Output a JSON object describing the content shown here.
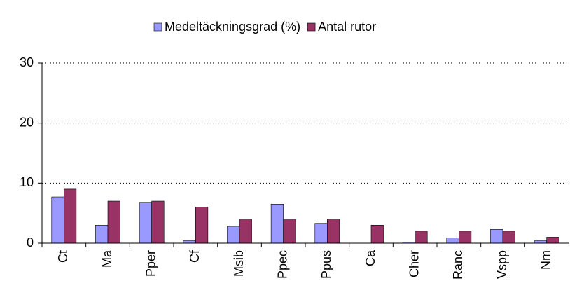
{
  "chart_data": {
    "type": "bar",
    "categories": [
      "Ct",
      "Ma",
      "Pper",
      "Cf",
      "Msib",
      "Ppec",
      "Ppus",
      "Ca",
      "Cher",
      "Ranc",
      "Vspp",
      "Nm"
    ],
    "series": [
      {
        "name": "Medeltäckningsgrad (%)",
        "color": "#9999ff",
        "values": [
          7.7,
          3,
          6.8,
          0.4,
          2.8,
          6.5,
          3.3,
          0,
          0.2,
          0.9,
          2.3,
          0.4
        ]
      },
      {
        "name": "Antal rutor",
        "color": "#993366",
        "values": [
          9,
          7,
          7,
          6,
          4,
          4,
          4,
          3,
          2,
          2,
          2,
          1
        ]
      }
    ],
    "ylim": [
      0,
      30
    ],
    "yticks": [
      0,
      10,
      20,
      30
    ],
    "grid": true,
    "legend": "top"
  }
}
